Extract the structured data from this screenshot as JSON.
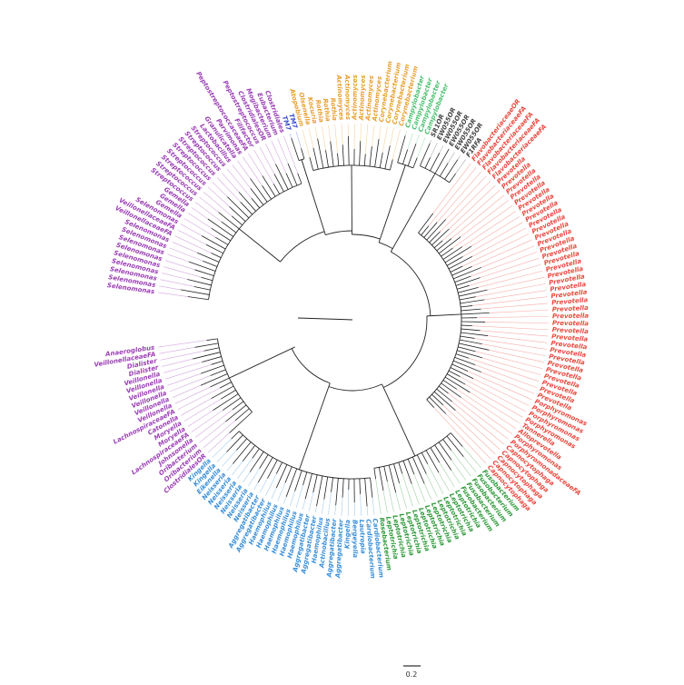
{
  "scale_bar": {
    "label": "0.2"
  },
  "clades": [
    {
      "color": "#9b3fb5",
      "leaves": [
        "Anaeroglobus",
        "VeillonellaceaeFA",
        "Dialister",
        "Dialister",
        "Veillonella",
        "Veillonella",
        "Veillonella",
        "Veillonella",
        "Veillonella",
        "Veillonella",
        "LachnospiraceaeFA",
        "Catonella",
        "Moryella",
        "Moryella",
        "LachnospiraceaeFA",
        "Johnsonella",
        "Oribacterium",
        "Oribacterium",
        "ClostridialesOR"
      ]
    },
    {
      "color": "#3a8fd8",
      "leaves": [
        "Kingella",
        "Kingella",
        "Eikenella",
        "Neisseria",
        "Neisseria",
        "Neisseria",
        "Neisseria",
        "Neisseria",
        "Neisseria",
        "Aggregatibacter",
        "Aggregatibacter",
        "Haemophilus",
        "Haemophilus",
        "Haemophilus",
        "Haemophilus",
        "Haemophilus",
        "Haemophilus",
        "Aggregatibacter",
        "Aggregatibacter",
        "Haemophilus",
        "Actinobacillus",
        "Aggregatibacter",
        "Aggregatibacter",
        "Kingella",
        "Bergeyella",
        "Lautropia",
        "Cardiobacterium",
        "Cardiobacterium"
      ]
    },
    {
      "color": "#2f9a3a",
      "leaves": [
        "Rosebacterium",
        "Leptotrichia",
        "Leptotrichia",
        "Leptotrichia",
        "Leptotrichia",
        "Leptotrichia",
        "Leptotrichia",
        "Leptotrichia",
        "Leptotrichia",
        "Leptotrichia",
        "Leptotrichia",
        "Leptotrichia",
        "Leptotrichia",
        "Fusobacterium",
        "Fusobacterium",
        "Fusobacterium",
        "Fusobacterium",
        "Fusobacterium"
      ]
    },
    {
      "color": "#e84a3f",
      "leaves": [
        "Capnocytophaga",
        "Capnocytophaga",
        "Capnocytophaga",
        "Capnocytophaga",
        "Capnocytophaga",
        "PorphyromonadaceaeFA",
        "Porphyromonas",
        "Alloprevotella",
        "Tannerella",
        "Porphyromonas",
        "Porphyromonas",
        "Porphyromonas",
        "Porphyromonas",
        "Prevotella",
        "Prevotella",
        "Prevotella",
        "Prevotella",
        "Prevotella",
        "Prevotella",
        "Prevotella",
        "Prevotella",
        "Prevotella",
        "Prevotella",
        "Prevotella",
        "Prevotella",
        "Prevotella",
        "Prevotella",
        "Prevotella",
        "Prevotella",
        "Prevotella",
        "Prevotella",
        "Prevotella",
        "Prevotella",
        "Prevotella",
        "Prevotella",
        "Prevotella",
        "Prevotella",
        "Prevotella",
        "Prevotella",
        "Prevotella",
        "Prevotella",
        "Prevotella",
        "Prevotella",
        "Prevotella",
        "Prevotella",
        "Prevotella",
        "Prevotella",
        "Prevotella",
        "FlavobacteriaceaeFA",
        "FlavobacteriaceaeFA",
        "FlavobacteriaceaeFA",
        "FlavobacteriaceaeFA",
        "FlavobacteriaceaeOR"
      ]
    },
    {
      "color": "#444444",
      "leaves": [
        "F1RFA",
        "EW055OR",
        "EW055OR",
        "EW055OR",
        "EW055OR",
        "EW055OR",
        "SR1OR"
      ]
    },
    {
      "color": "#4cc070",
      "leaves": [
        "Campylobacter",
        "Campylobacter",
        "Campylobacter",
        "Campylobacter"
      ]
    },
    {
      "color": "#e8a030",
      "leaves": [
        "Corynebacterium",
        "Corynebacterium",
        "Corynebacterium",
        "Corynebacterium",
        "Actinomyces",
        "Actinomyces",
        "Actinomyces",
        "Actinomyces",
        "Actinomyces",
        "Actinomyces",
        "Rothia",
        "Rothia",
        "Rothia",
        "Kocuria",
        "Olsenella",
        "Atopobium"
      ]
    },
    {
      "color": "#3a4fd0",
      "leaves": [
        "TM7",
        "TM7"
      ]
    },
    {
      "color": "#9b3fb5",
      "leaves": [
        "Clostridiales",
        "Eubacterium",
        "Mogibacterium",
        "ClostridialesOR",
        "Peptostreptococcus",
        "Filifactor",
        "PeptostreptococcaceaeFA",
        "Parvimonas",
        "Granulicatella",
        "Lactobacillus",
        "Streptococcus",
        "Streptococcus",
        "Streptococcus",
        "Streptococcus",
        "Streptococcus",
        "Streptococcus",
        "Streptococcus",
        "Streptococcus",
        "Gemella",
        "Gemella",
        "Gemella",
        "Selenomonas",
        "VeillonellaceaeFA",
        "VeillonellaceaeFA",
        "Selenomonas",
        "Selenomonas",
        "Selenomonas",
        "Selenomonas",
        "Selenomonas",
        "Selenomonas",
        "Selenomonas",
        "Selenomonas",
        "Selenomonas"
      ]
    }
  ]
}
